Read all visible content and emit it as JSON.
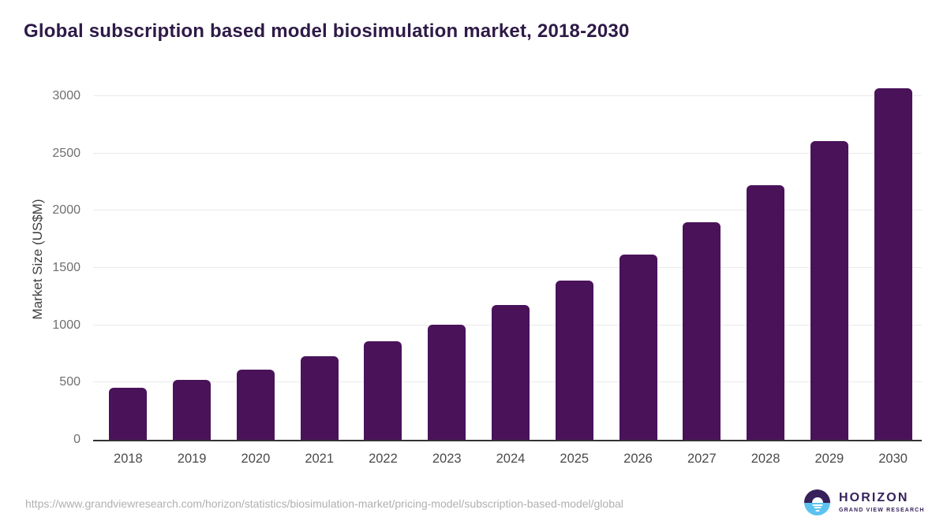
{
  "title": "Global subscription based model biosimulation market, 2018-2030",
  "chart_data": {
    "type": "bar",
    "title": "Global subscription based model biosimulation market, 2018-2030",
    "categories": [
      "2018",
      "2019",
      "2020",
      "2021",
      "2022",
      "2023",
      "2024",
      "2025",
      "2026",
      "2027",
      "2028",
      "2029",
      "2030"
    ],
    "values": [
      452,
      520,
      614,
      728,
      857,
      1005,
      1176,
      1388,
      1615,
      1896,
      2220,
      2610,
      3065
    ],
    "xlabel": "",
    "ylabel": "Market Size (US$M)",
    "ylim": [
      0,
      3150
    ],
    "yticks": [
      0,
      500,
      1000,
      1500,
      2000,
      2500,
      3000
    ],
    "grid": "horizontal",
    "legend": "none",
    "bar_color": "#4a1259"
  },
  "footer": {
    "source_url": "https://www.grandviewresearch.com/horizon/statistics/biosimulation-market/pricing-model/subscription-based-model/global",
    "logo": {
      "name": "HORIZON",
      "subtitle": "GRAND VIEW RESEARCH",
      "icon": "horizon-sun-icon"
    }
  },
  "colors": {
    "bar": "#4a1259",
    "title": "#2e1a47",
    "axis-line": "#333333",
    "gridline": "#eaeaea",
    "tick-label": "#6f6f6f",
    "x-label": "#4a4a4a",
    "axis-title": "#3f3f3f",
    "url": "#b0b0b0",
    "logo-purple": "#38205a",
    "logo-blue": "#5cc3f0",
    "logo-text": "#35235c"
  }
}
